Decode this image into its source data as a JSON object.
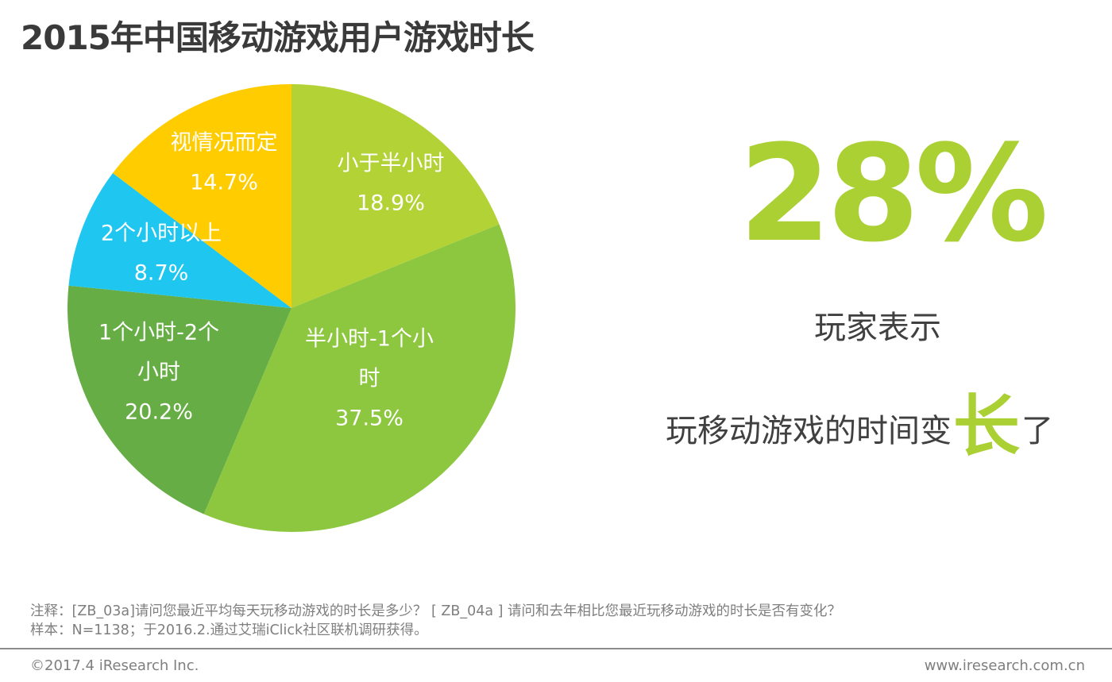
{
  "title": "2015年中国移动游戏用户游戏时长",
  "chart_data": {
    "type": "pie",
    "title": "2015年中国移动游戏用户游戏时长",
    "slices": [
      {
        "label_lines": [
          "小于半小时"
        ],
        "value": 18.9,
        "value_text": "18.9%",
        "color": "#b2d235"
      },
      {
        "label_lines": [
          "半小时-1个小",
          "时"
        ],
        "value": 37.5,
        "value_text": "37.5%",
        "color": "#8dc63f"
      },
      {
        "label_lines": [
          "1个小时-2个",
          "小时"
        ],
        "value": 20.2,
        "value_text": "20.2%",
        "color": "#66ad45"
      },
      {
        "label_lines": [
          "2个小时以上"
        ],
        "value": 8.7,
        "value_text": "8.7%",
        "color": "#1fc6ef"
      },
      {
        "label_lines": [
          "视情况而定"
        ],
        "value": 14.7,
        "value_text": "14.7%",
        "color": "#ffcc00"
      }
    ],
    "start": "12 o'clock",
    "direction": "clockwise",
    "legend": "none"
  },
  "highlight": {
    "percent": "28%",
    "line1": "玩家表示",
    "line2_prefix": "玩移动游戏的时间变",
    "line2_emph": "长",
    "line2_suffix": "了"
  },
  "footnote": {
    "note": "注释：[ZB_03a]请问您最近平均每天玩移动游戏的时长是多少？ [ ZB_04a ] 请问和去年相比您最近玩移动游戏的时长是否有变化？",
    "sample": "样本：N=1138；于2016.2.通过艾瑞iClick社区联机调研获得。"
  },
  "footer": {
    "copyright": "©2017.4 iResearch Inc.",
    "website": "www.iresearch.com.cn"
  },
  "colors": {
    "accent": "#aad033",
    "title_text": "#3a3a3a",
    "footnote_text": "#7f7f7f"
  }
}
